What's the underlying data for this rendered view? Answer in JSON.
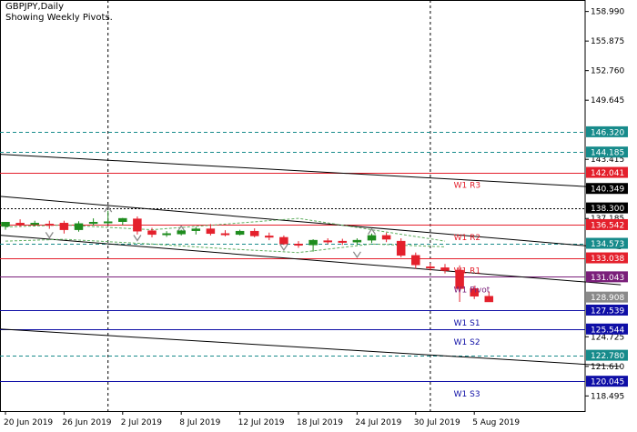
{
  "chart_info": {
    "symbol": "GBPJPY,Daily",
    "note": "Showing Weekly Pivots."
  },
  "chart_data": {
    "type": "candlestick",
    "title": "GBPJPY,Daily",
    "subtitle": "Showing Weekly Pivots.",
    "ylim": [
      116.9,
      160.2
    ],
    "price_ticks": [
      "158.990",
      "155.875",
      "152.760",
      "149.645",
      "143.415",
      "137.185",
      "124.725",
      "121.610",
      "118.495"
    ],
    "date_ticks": [
      {
        "label": "20 Jun 2019",
        "index": 0
      },
      {
        "label": "26 Jun 2019",
        "index": 4
      },
      {
        "label": "2 Jul 2019",
        "index": 8
      },
      {
        "label": "8 Jul 2019",
        "index": 12
      },
      {
        "label": "12 Jul 2019",
        "index": 16
      },
      {
        "label": "18 Jul 2019",
        "index": 20
      },
      {
        "label": "24 Jul 2019",
        "index": 24
      },
      {
        "label": "30 Jul 2019",
        "index": 28
      },
      {
        "label": "5 Aug 2019",
        "index": 32
      }
    ],
    "candles": [
      {
        "o": 136.35,
        "h": 136.6,
        "l": 136.0,
        "c": 136.8
      },
      {
        "o": 136.7,
        "h": 137.1,
        "l": 136.3,
        "c": 136.6
      },
      {
        "o": 136.6,
        "h": 136.95,
        "l": 136.35,
        "c": 136.7
      },
      {
        "o": 136.6,
        "h": 136.95,
        "l": 136.1,
        "c": 136.55
      },
      {
        "o": 136.7,
        "h": 136.95,
        "l": 135.6,
        "c": 136.0
      },
      {
        "o": 136.0,
        "h": 136.9,
        "l": 135.8,
        "c": 136.65
      },
      {
        "o": 136.65,
        "h": 137.2,
        "l": 136.45,
        "c": 136.8
      },
      {
        "o": 136.75,
        "h": 138.0,
        "l": 136.6,
        "c": 136.85
      },
      {
        "o": 136.85,
        "h": 137.25,
        "l": 136.5,
        "c": 137.2
      },
      {
        "o": 137.15,
        "h": 137.4,
        "l": 135.5,
        "c": 135.85
      },
      {
        "o": 135.9,
        "h": 136.2,
        "l": 135.2,
        "c": 135.5
      },
      {
        "o": 135.5,
        "h": 135.85,
        "l": 135.25,
        "c": 135.6
      },
      {
        "o": 135.55,
        "h": 136.0,
        "l": 135.4,
        "c": 135.9
      },
      {
        "o": 135.9,
        "h": 136.3,
        "l": 135.5,
        "c": 136.1
      },
      {
        "o": 136.1,
        "h": 136.6,
        "l": 135.4,
        "c": 135.6
      },
      {
        "o": 135.6,
        "h": 135.95,
        "l": 135.3,
        "c": 135.5
      },
      {
        "o": 135.5,
        "h": 136.0,
        "l": 135.4,
        "c": 135.85
      },
      {
        "o": 135.85,
        "h": 136.15,
        "l": 135.2,
        "c": 135.35
      },
      {
        "o": 135.35,
        "h": 135.7,
        "l": 134.9,
        "c": 135.2
      },
      {
        "o": 135.2,
        "h": 135.4,
        "l": 134.4,
        "c": 134.5
      },
      {
        "o": 134.5,
        "h": 134.8,
        "l": 134.1,
        "c": 134.4
      },
      {
        "o": 134.4,
        "h": 135.0,
        "l": 133.7,
        "c": 134.9
      },
      {
        "o": 134.85,
        "h": 135.1,
        "l": 134.5,
        "c": 134.8
      },
      {
        "o": 134.8,
        "h": 135.05,
        "l": 134.4,
        "c": 134.7
      },
      {
        "o": 134.7,
        "h": 135.1,
        "l": 134.4,
        "c": 134.9
      },
      {
        "o": 134.9,
        "h": 135.6,
        "l": 134.6,
        "c": 135.4
      },
      {
        "o": 135.4,
        "h": 135.7,
        "l": 134.7,
        "c": 135.0
      },
      {
        "o": 134.8,
        "h": 135.1,
        "l": 133.1,
        "c": 133.3
      },
      {
        "o": 133.3,
        "h": 133.6,
        "l": 131.9,
        "c": 132.3
      },
      {
        "o": 132.1,
        "h": 132.5,
        "l": 131.7,
        "c": 132.0
      },
      {
        "o": 132.0,
        "h": 132.4,
        "l": 131.4,
        "c": 131.7
      },
      {
        "o": 131.75,
        "h": 132.25,
        "l": 128.4,
        "c": 129.8
      },
      {
        "o": 129.8,
        "h": 130.1,
        "l": 128.7,
        "c": 129.0
      },
      {
        "o": 129.0,
        "h": 129.5,
        "l": 128.8,
        "c": 128.4
      }
    ],
    "pivots": [
      {
        "name": "W1 R3",
        "value": 142.041
      },
      {
        "name": "W1 R2",
        "value": 136.542
      },
      {
        "name": "W1 R1",
        "value": 133.038
      },
      {
        "name": "W1 Pivot",
        "value": 131.043
      },
      {
        "name": "W1 S1",
        "value": 127.539
      },
      {
        "name": "W1 S2",
        "value": 125.544
      },
      {
        "name": "W1 S3",
        "value": 120.045
      }
    ],
    "price_marks": [
      {
        "text": "146.320",
        "value": 146.32,
        "bg": "#178b8b",
        "line": "dash"
      },
      {
        "text": "144.185",
        "value": 144.185,
        "bg": "#178b8b",
        "line": "dash"
      },
      {
        "text": "142.041",
        "value": 142.041,
        "bg": "#e4202c",
        "line": "solid"
      },
      {
        "text": "140.349",
        "value": 140.349,
        "bg": "#000000",
        "line": "none"
      },
      {
        "text": "138.300",
        "value": 138.3,
        "bg": "#000000",
        "line": "dot"
      },
      {
        "text": "136.542",
        "value": 136.542,
        "bg": "#e4202c",
        "line": "solid"
      },
      {
        "text": "134.573",
        "value": 134.573,
        "bg": "#178b8b",
        "line": "dash"
      },
      {
        "text": "133.038",
        "value": 133.038,
        "bg": "#e4202c",
        "line": "solid"
      },
      {
        "text": "131.043",
        "value": 131.043,
        "bg": "#7a1f7a",
        "line": "solid"
      },
      {
        "text": "128.908",
        "value": 128.908,
        "bg": "#8a8a8a",
        "line": "none"
      },
      {
        "text": "127.539",
        "value": 127.539,
        "bg": "#0e0ea6",
        "line": "solid"
      },
      {
        "text": "125.544",
        "value": 125.544,
        "bg": "#0e0ea6",
        "line": "solid"
      },
      {
        "text": "122.780",
        "value": 122.78,
        "bg": "#178b8b",
        "line": "dash"
      },
      {
        "text": "120.045",
        "value": 120.045,
        "bg": "#0e0ea6",
        "line": "solid"
      }
    ],
    "trendlines": [
      {
        "from": {
          "index": -1,
          "value": 144.0
        },
        "to": {
          "index": 42,
          "value": 140.35
        }
      },
      {
        "from": {
          "index": -1,
          "value": 139.6
        },
        "to": {
          "index": 42,
          "value": 134.0
        }
      },
      {
        "from": {
          "index": -1,
          "value": 135.5
        },
        "to": {
          "index": 42,
          "value": 130.2
        }
      },
      {
        "from": {
          "index": -1,
          "value": 125.6
        },
        "to": {
          "index": 42,
          "value": 121.6
        }
      }
    ],
    "envelope": {
      "upper": [
        {
          "index": 0,
          "value": 136.3
        },
        {
          "index": 4,
          "value": 136.5
        },
        {
          "index": 10,
          "value": 136.0
        },
        {
          "index": 15,
          "value": 136.6
        },
        {
          "index": 20,
          "value": 137.2
        },
        {
          "index": 25,
          "value": 136.0
        },
        {
          "index": 30,
          "value": 134.8
        }
      ],
      "lower": [
        {
          "index": 0,
          "value": 134.8
        },
        {
          "index": 4,
          "value": 135.0
        },
        {
          "index": 10,
          "value": 134.5
        },
        {
          "index": 15,
          "value": 134.0
        },
        {
          "index": 20,
          "value": 133.6
        },
        {
          "index": 25,
          "value": 134.5
        },
        {
          "index": 30,
          "value": 134.2
        }
      ]
    },
    "fractals": [
      {
        "index": 7,
        "value": 138.25,
        "dir": "up"
      },
      {
        "index": 12,
        "value": 136.2,
        "dir": "up"
      },
      {
        "index": 3,
        "value": 135.35,
        "dir": "down"
      },
      {
        "index": 9,
        "value": 135.05,
        "dir": "down"
      },
      {
        "index": 19,
        "value": 134.05,
        "dir": "down"
      },
      {
        "index": 24,
        "value": 133.3,
        "dir": "down"
      },
      {
        "index": 25,
        "value": 135.9,
        "dir": "up"
      }
    ],
    "vlines": [
      {
        "index": 7
      },
      {
        "index": 29
      }
    ],
    "colors": {
      "bull": "#1e8c1e",
      "bear": "#e4202c",
      "pivot_r": "#e4202c",
      "pivot_p": "#7a1f7a",
      "pivot_s": "#0e0ea6",
      "grid": "#000000",
      "envelope": "#5fae5f",
      "fractal": "#8c8c8c",
      "trend": "#000000"
    }
  }
}
